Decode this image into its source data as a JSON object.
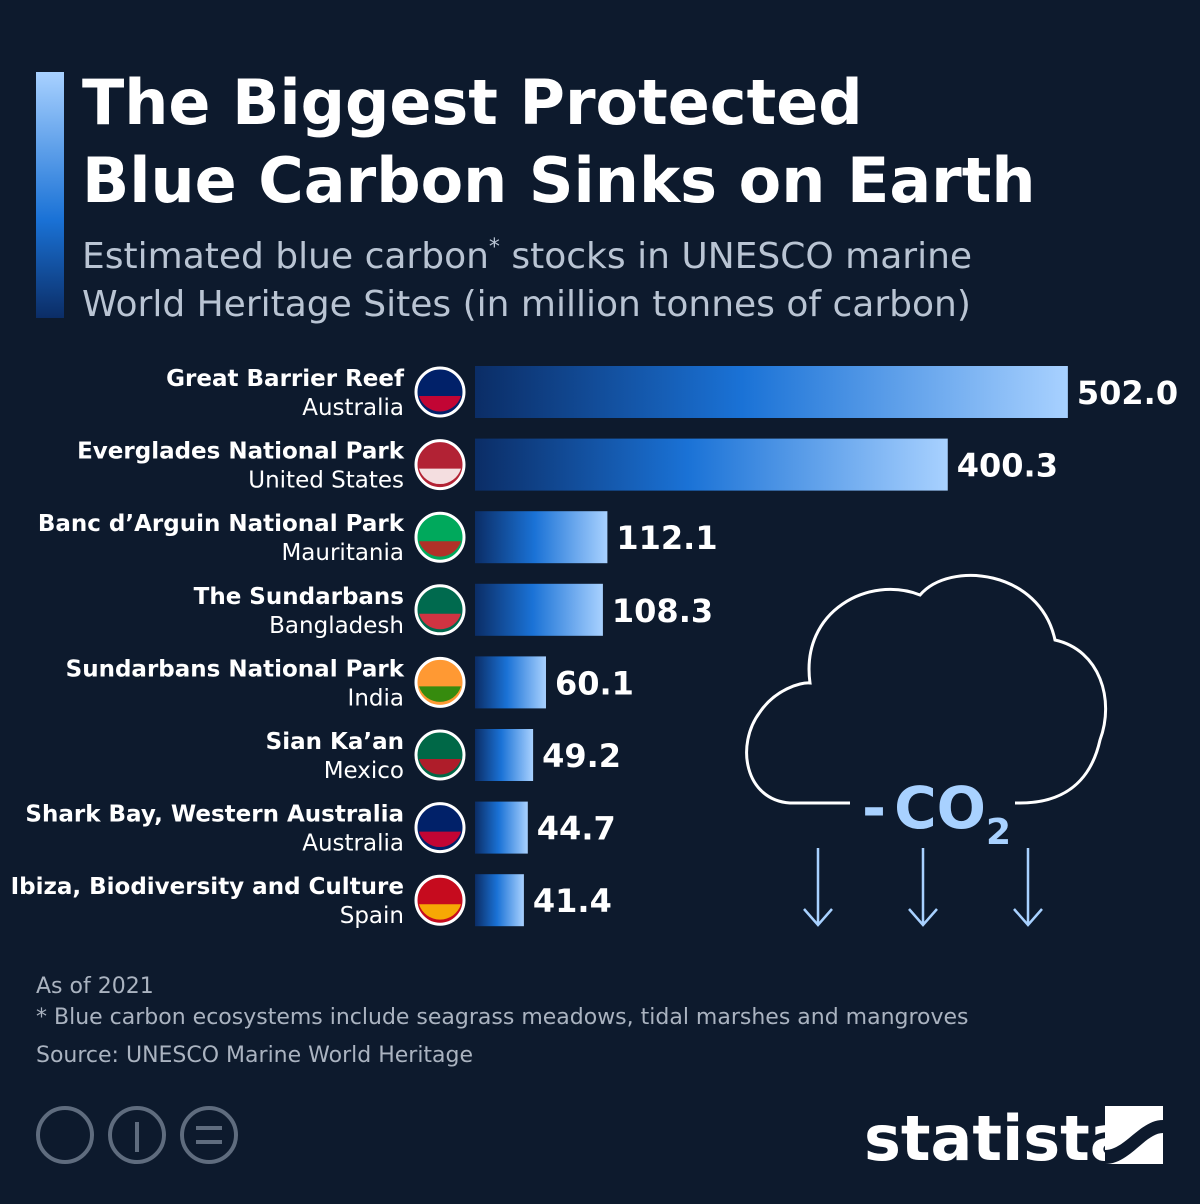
{
  "chart_data": {
    "type": "bar",
    "orientation": "horizontal",
    "title": [
      "The Biggest Protected",
      "Blue Carbon Sinks on Earth"
    ],
    "subtitle": [
      "Estimated blue carbon",
      "*",
      " stocks in UNESCO marine",
      "World Heritage Sites (in million tonnes of carbon)"
    ],
    "categories": [
      "Great Barrier Reef",
      "Everglades National Park",
      "Banc d’Arguin National Park",
      "The Sundarbans",
      "Sundarbans National Park",
      "Sian Ka’an",
      "Shark Bay, Western Australia",
      "Ibiza, Biodiversity and Culture"
    ],
    "countries": [
      "Australia",
      "United States",
      "Mauritania",
      "Bangladesh",
      "India",
      "Mexico",
      "Australia",
      "Spain"
    ],
    "values": [
      502.0,
      400.3,
      112.1,
      108.3,
      60.1,
      49.2,
      44.7,
      41.4
    ],
    "value_labels": [
      "502.0",
      "400.3",
      "112.1",
      "108.3",
      "60.1",
      "49.2",
      "44.7",
      "41.4"
    ],
    "color": [
      "#0b2d66",
      "#1a72d6",
      "#a8d1ff"
    ],
    "cloud_label": [
      "-",
      "CO",
      "2"
    ],
    "notes": [
      "As of 2021",
      "* Blue carbon ecosystems include seagrass meadows, tidal marshes and mangroves",
      "Source: UNESCO Marine World Heritage"
    ],
    "brand": "statista"
  }
}
